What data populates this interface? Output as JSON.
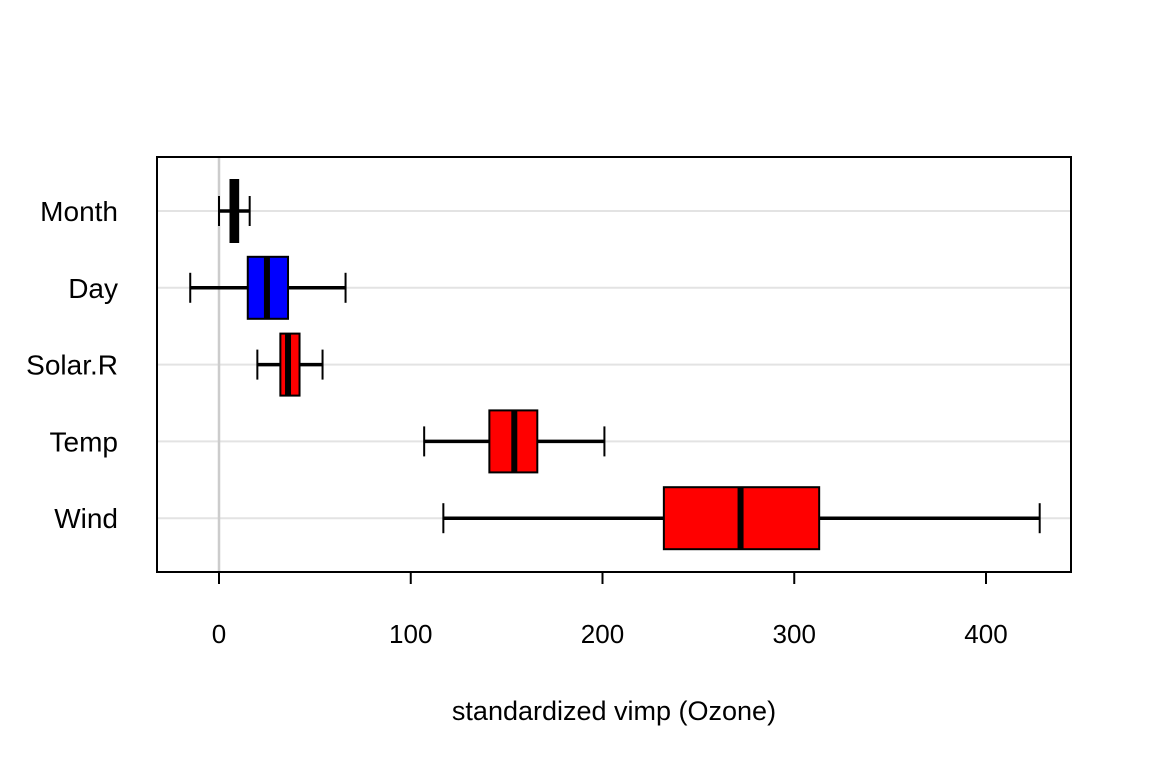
{
  "chart_data": {
    "type": "boxplot",
    "orientation": "horizontal",
    "xlabel": "standardized vimp (Ozone)",
    "ylabel": "",
    "xlim": [
      -32,
      445
    ],
    "x_ticks": [
      0,
      100,
      200,
      300,
      400
    ],
    "x_tick_labels": [
      "0",
      "100",
      "200",
      "300",
      "400"
    ],
    "reference_line_x": 0,
    "grid": "horizontal",
    "categories": [
      "Month",
      "Day",
      "Solar.R",
      "Temp",
      "Wind"
    ],
    "boxes": [
      {
        "label": "Month",
        "whisker_low": 0,
        "q1": 6,
        "median": 8,
        "q3": 10,
        "whisker_high": 16,
        "color": "#000000"
      },
      {
        "label": "Day",
        "whisker_low": -15,
        "q1": 15,
        "median": 25,
        "q3": 36,
        "whisker_high": 66,
        "color": "#0000ff"
      },
      {
        "label": "Solar.R",
        "whisker_low": 20,
        "q1": 32,
        "median": 36,
        "q3": 42,
        "whisker_high": 54,
        "color": "#ff0000"
      },
      {
        "label": "Temp",
        "whisker_low": 107,
        "q1": 141,
        "median": 154,
        "q3": 166,
        "whisker_high": 201,
        "color": "#ff0000"
      },
      {
        "label": "Wind",
        "whisker_low": 117,
        "q1": 232,
        "median": 272,
        "q3": 313,
        "whisker_high": 428,
        "color": "#ff0000"
      }
    ]
  }
}
